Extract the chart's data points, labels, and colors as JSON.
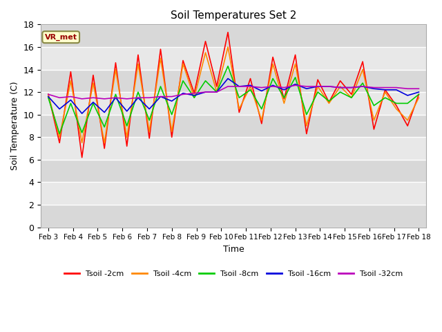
{
  "title": "Soil Temperatures Set 2",
  "xlabel": "Time",
  "ylabel": "Soil Temperature (C)",
  "ylim": [
    0,
    18
  ],
  "yticks": [
    0,
    2,
    4,
    6,
    8,
    10,
    12,
    14,
    16,
    18
  ],
  "x_labels": [
    "Feb 3",
    "Feb 4",
    "Feb 5",
    "Feb 6",
    "Feb 7",
    "Feb 8",
    "Feb 9",
    "Feb 10",
    "Feb 11",
    "Feb 12",
    "Feb 13",
    "Feb 14",
    "Feb 15",
    "Feb 16",
    "Feb 17",
    "Feb 18"
  ],
  "colors": {
    "Tsoil -2cm": "#ff0000",
    "Tsoil -4cm": "#ff8800",
    "Tsoil -8cm": "#00cc00",
    "Tsoil -16cm": "#0000dd",
    "Tsoil -32cm": "#bb00bb"
  },
  "bg_color_dark": "#d8d8d8",
  "bg_color_light": "#e8e8e8",
  "annotation_text": "VR_met",
  "annotation_bg": "#ffffcc",
  "annotation_border": "#888844",
  "series": {
    "Tsoil -2cm": [
      11.8,
      7.5,
      13.8,
      6.2,
      13.5,
      7.0,
      14.6,
      7.2,
      15.3,
      7.9,
      15.8,
      8.0,
      14.8,
      11.9,
      16.5,
      12.5,
      17.3,
      10.2,
      13.2,
      9.2,
      15.1,
      11.4,
      15.3,
      8.3,
      13.1,
      11.1,
      13.0,
      11.8,
      14.7,
      8.7,
      12.2,
      10.8,
      9.0,
      11.8
    ],
    "Tsoil -4cm": [
      11.8,
      8.0,
      13.0,
      7.5,
      12.8,
      7.5,
      14.0,
      8.0,
      14.5,
      8.5,
      15.0,
      8.5,
      14.5,
      11.5,
      15.5,
      12.0,
      16.0,
      10.5,
      12.5,
      9.5,
      14.5,
      11.0,
      14.5,
      9.0,
      12.5,
      11.0,
      12.5,
      11.5,
      14.0,
      9.5,
      12.0,
      10.5,
      9.5,
      11.5
    ],
    "Tsoil -8cm": [
      11.5,
      8.3,
      11.0,
      8.4,
      11.0,
      8.9,
      11.8,
      9.0,
      12.0,
      9.5,
      12.5,
      10.0,
      13.0,
      11.5,
      13.0,
      12.0,
      14.3,
      11.5,
      12.2,
      10.5,
      13.2,
      11.5,
      13.3,
      10.0,
      12.0,
      11.2,
      12.0,
      11.5,
      12.8,
      10.8,
      11.5,
      11.0,
      11.0,
      11.8
    ],
    "Tsoil -16cm": [
      11.6,
      10.5,
      11.3,
      10.1,
      11.1,
      10.2,
      11.5,
      10.3,
      11.5,
      10.5,
      11.6,
      11.2,
      11.9,
      11.7,
      12.0,
      12.0,
      13.2,
      12.5,
      12.6,
      12.1,
      12.6,
      12.2,
      12.7,
      12.3,
      12.5,
      12.5,
      12.4,
      12.4,
      12.5,
      12.3,
      12.2,
      12.2,
      11.7,
      12.0
    ],
    "Tsoil -32cm": [
      11.8,
      11.5,
      11.6,
      11.4,
      11.5,
      11.4,
      11.5,
      11.4,
      11.5,
      11.5,
      11.6,
      11.6,
      11.8,
      11.9,
      12.0,
      12.0,
      12.5,
      12.5,
      12.5,
      12.4,
      12.5,
      12.4,
      12.6,
      12.5,
      12.5,
      12.5,
      12.4,
      12.4,
      12.5,
      12.4,
      12.4,
      12.4,
      12.3,
      12.3
    ]
  }
}
